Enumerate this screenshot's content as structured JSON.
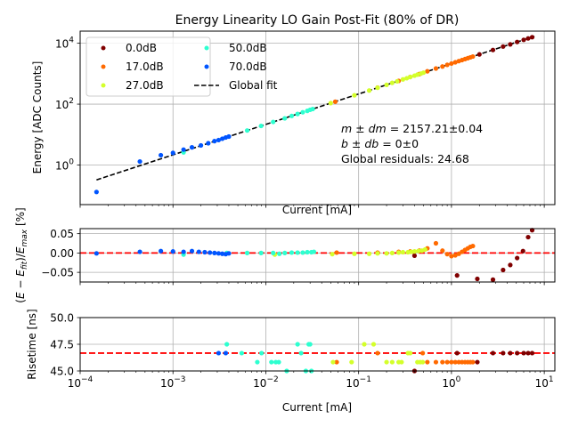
{
  "chart_data": [
    {
      "id": "energy",
      "type": "scatter",
      "title": "Energy Linearity LO Gain Post-Fit (80% of DR)",
      "xlabel": "Current [mA]",
      "ylabel": "Energy [ADC Counts]",
      "xscale": "log",
      "yscale": "log",
      "xlim": [
        0.0001,
        13
      ],
      "ylim": [
        0.05,
        25000
      ],
      "xticks": [
        0.0001,
        0.001,
        0.01,
        0.1,
        1,
        10
      ],
      "xtick_labels": [
        [
          "10",
          "−4"
        ],
        [
          "10",
          "−3"
        ],
        [
          "10",
          "−2"
        ],
        [
          "10",
          "−1"
        ],
        [
          "10",
          "0"
        ],
        [
          "10",
          "1"
        ]
      ],
      "yticks": [
        1,
        100,
        10000
      ],
      "ytick_labels": [
        [
          "10",
          "0"
        ],
        [
          "10",
          "2"
        ],
        [
          "10",
          "4"
        ]
      ],
      "grid": true,
      "legend": {
        "placement": "top-left",
        "columns": 2,
        "entries": [
          {
            "label": "0.0dB",
            "type": "marker",
            "color": "#800000"
          },
          {
            "label": "17.0dB",
            "type": "marker",
            "color": "#ff6a00"
          },
          {
            "label": "27.0dB",
            "type": "marker",
            "color": "#d4ff2b"
          },
          {
            "label": "50.0dB",
            "type": "marker",
            "color": "#2dffd0"
          },
          {
            "label": "70.0dB",
            "type": "marker",
            "color": "#0055ff"
          },
          {
            "label": "Global fit",
            "type": "line",
            "color": "#000000"
          }
        ]
      },
      "fit": {
        "slope": 2157.21,
        "intercept": 0,
        "x_range": [
          0.00015,
          8
        ],
        "color": "#000000",
        "style": "dashed"
      },
      "annotation": {
        "line1": "m ± dm = 2157.21±0.04",
        "line1_math": "m ± dm",
        "line1_value": " = 2157.21±0.04",
        "line2_math": "b ± db",
        "line2_value": " = 0±0",
        "line3": "Global residuals: 24.68"
      },
      "series": [
        {
          "name": "0.0dB",
          "color": "#800000",
          "x": [
            2.0,
            2.8,
            3.6,
            4.3,
            5.1,
            6.0,
            6.7,
            7.4
          ],
          "y": [
            4300,
            6000,
            7800,
            9200,
            11000,
            12900,
            14400,
            15800
          ]
        },
        {
          "name": "17.0dB",
          "color": "#ff6a00",
          "x": [
            0.056,
            0.16,
            0.27,
            0.36,
            0.45,
            0.55,
            0.68,
            0.8,
            0.9,
            1.0,
            1.1,
            1.2,
            1.3,
            1.4,
            1.5,
            1.6,
            1.7
          ],
          "y": [
            120,
            350,
            580,
            780,
            970,
            1200,
            1480,
            1720,
            1950,
            2150,
            2370,
            2590,
            2800,
            3020,
            3230,
            3450,
            3660
          ]
        },
        {
          "name": "27.0dB",
          "color": "#d4ff2b",
          "x": [
            0.05,
            0.09,
            0.13,
            0.16,
            0.2,
            0.23,
            0.26,
            0.3,
            0.33,
            0.36,
            0.4,
            0.43,
            0.47,
            0.5
          ],
          "y": [
            108,
            195,
            280,
            345,
            430,
            500,
            560,
            650,
            710,
            780,
            860,
            930,
            1010,
            1080
          ]
        },
        {
          "name": "50.0dB",
          "color": "#2dffd0",
          "x": [
            0.0013,
            0.0063,
            0.0089,
            0.012,
            0.016,
            0.019,
            0.022,
            0.025,
            0.028,
            0.03,
            0.032
          ],
          "y": [
            2.6,
            13.6,
            19.2,
            26,
            34,
            41,
            47.5,
            54,
            60,
            65,
            69
          ]
        },
        {
          "name": "70.0dB",
          "color": "#0055ff",
          "x": [
            0.00015,
            0.00044,
            0.00074,
            0.001,
            0.0013,
            0.0016,
            0.002,
            0.0024,
            0.0028,
            0.0031,
            0.0034,
            0.0037,
            0.004
          ],
          "y": [
            0.13,
            1.3,
            2.1,
            2.5,
            3.2,
            3.8,
            4.4,
            5.2,
            6.1,
            6.6,
            7.3,
            8.0,
            8.6
          ]
        }
      ]
    },
    {
      "id": "residuals",
      "type": "scatter",
      "ylabel": "(E − E_fit)/E_max [%]",
      "ylabel_parts": {
        "open": "(",
        "e1": "E",
        "minus": " − ",
        "e2": "E",
        "sub2": "fit",
        "close": ")/",
        "e3": "E",
        "sub3": "max",
        "unit": " [%]"
      },
      "xscale": "log",
      "xlim": [
        0.0001,
        13
      ],
      "ylim": [
        -0.075,
        0.063
      ],
      "yticks": [
        -0.05,
        0.0,
        0.05
      ],
      "ytick_labels": [
        "−0.05",
        "0.00",
        "0.05"
      ],
      "reference_line": {
        "y": 0,
        "color": "#ff0000",
        "style": "dashed"
      },
      "grid": true,
      "series": [
        {
          "name": "0.0dB",
          "color": "#800000",
          "x": [
            0.4,
            1.15,
            1.9,
            2.8,
            3.6,
            4.3,
            5.1,
            5.9,
            6.7,
            7.4
          ],
          "y": [
            -0.007,
            -0.058,
            -0.067,
            -0.069,
            -0.044,
            -0.031,
            -0.013,
            0.005,
            0.041,
            0.059
          ]
        },
        {
          "name": "17.0dB",
          "color": "#ff6a00",
          "x": [
            0.058,
            0.16,
            0.27,
            0.36,
            0.45,
            0.55,
            0.68,
            0.8,
            0.9,
            1.0,
            1.1,
            1.2,
            1.3,
            1.4,
            1.5,
            1.6,
            1.7
          ],
          "y": [
            0.001,
            0.001,
            0.003,
            0.004,
            0.006,
            0.012,
            0.025,
            0.006,
            -0.003,
            -0.008,
            -0.006,
            -0.002,
            0.003,
            0.008,
            0.012,
            0.016,
            0.018
          ]
        },
        {
          "name": "27.0dB",
          "color": "#d4ff2b",
          "x": [
            0.0125,
            0.052,
            0.09,
            0.13,
            0.16,
            0.2,
            0.23,
            0.27,
            0.3,
            0.34,
            0.37,
            0.4,
            0.44,
            0.48,
            0.52
          ],
          "y": [
            -0.004,
            -0.003,
            -0.002,
            -0.002,
            -0.001,
            -0.001,
            0.0,
            0.001,
            0.002,
            0.002,
            0.003,
            0.004,
            0.005,
            0.006,
            0.009
          ]
        },
        {
          "name": "50.0dB",
          "color": "#2dffd0",
          "x": [
            0.0013,
            0.0038,
            0.0063,
            0.0089,
            0.012,
            0.014,
            0.016,
            0.019,
            0.022,
            0.025,
            0.028,
            0.031,
            0.033
          ],
          "y": [
            -0.004,
            0.0,
            0.0,
            0.0,
            0.0,
            -0.002,
            0.0,
            0.001,
            0.001,
            0.001,
            0.002,
            0.002,
            0.003
          ]
        },
        {
          "name": "70.0dB",
          "color": "#0055ff",
          "x": [
            0.00015,
            0.00044,
            0.00074,
            0.001,
            0.0013,
            0.0016,
            0.0019,
            0.0022,
            0.0025,
            0.0028,
            0.0031,
            0.0034,
            0.0037,
            0.004
          ],
          "y": [
            -0.001,
            0.003,
            0.005,
            0.004,
            0.003,
            0.005,
            0.003,
            0.002,
            0.001,
            0.0,
            -0.001,
            -0.002,
            -0.003,
            -0.001
          ]
        }
      ]
    },
    {
      "id": "risetime",
      "type": "scatter",
      "xlabel": "Current [mA]",
      "ylabel": "Risetime [ns]",
      "xscale": "log",
      "xlim": [
        0.0001,
        13
      ],
      "ylim": [
        45.0,
        50.0
      ],
      "yticks": [
        45.0,
        47.5,
        50.0
      ],
      "ytick_labels": [
        "45.0",
        "47.5",
        "50.0"
      ],
      "xticks": [
        0.0001,
        0.001,
        0.01,
        0.1,
        1,
        10
      ],
      "xtick_labels": [
        [
          "10",
          "−4"
        ],
        [
          "10",
          "−3"
        ],
        [
          "10",
          "−2"
        ],
        [
          "10",
          "−1"
        ],
        [
          "10",
          "0"
        ],
        [
          "10",
          "1"
        ]
      ],
      "reference_line": {
        "y": 46.67,
        "color": "#ff0000",
        "style": "dashed"
      },
      "grid": true,
      "series": [
        {
          "name": "0.0dB",
          "color": "#800000",
          "x": [
            0.4,
            1.15,
            1.9,
            2.8,
            3.6,
            4.3,
            5.1,
            6.0,
            6.7,
            7.4
          ],
          "y": [
            45.0,
            46.67,
            45.83,
            46.67,
            46.67,
            46.67,
            46.67,
            46.67,
            46.67,
            46.67
          ]
        },
        {
          "name": "17.0dB",
          "color": "#ff6a00",
          "x": [
            0.058,
            0.16,
            0.49,
            0.55,
            0.68,
            0.8,
            0.9,
            1.0,
            1.1,
            1.2,
            1.3,
            1.4,
            1.5,
            1.6,
            1.7
          ],
          "y": [
            45.83,
            46.67,
            46.67,
            45.83,
            45.83,
            45.83,
            45.83,
            45.83,
            45.83,
            45.83,
            45.83,
            45.83,
            45.83,
            45.83,
            45.83
          ]
        },
        {
          "name": "27.0dB",
          "color": "#d4ff2b",
          "x": [
            0.053,
            0.084,
            0.115,
            0.145,
            0.2,
            0.23,
            0.27,
            0.29,
            0.34,
            0.36,
            0.43,
            0.46,
            0.49
          ],
          "y": [
            45.83,
            45.83,
            47.5,
            47.5,
            45.83,
            45.83,
            45.83,
            45.83,
            46.67,
            46.67,
            45.83,
            45.83,
            45.83
          ]
        },
        {
          "name": "50.0dB",
          "color": "#2dffd0",
          "x": [
            0.0038,
            0.0055,
            0.0081,
            0.009,
            0.0115,
            0.0128,
            0.0138,
            0.0168,
            0.022,
            0.024,
            0.027,
            0.029,
            0.03,
            0.031
          ],
          "y": [
            47.5,
            46.67,
            45.83,
            46.67,
            45.83,
            45.83,
            45.83,
            45.0,
            47.5,
            46.67,
            45.0,
            47.5,
            47.5,
            45.0
          ]
        },
        {
          "name": "70.0dB",
          "color": "#0055ff",
          "x": [
            0.0031,
            0.0037
          ],
          "y": [
            46.67,
            46.67
          ]
        }
      ]
    }
  ]
}
